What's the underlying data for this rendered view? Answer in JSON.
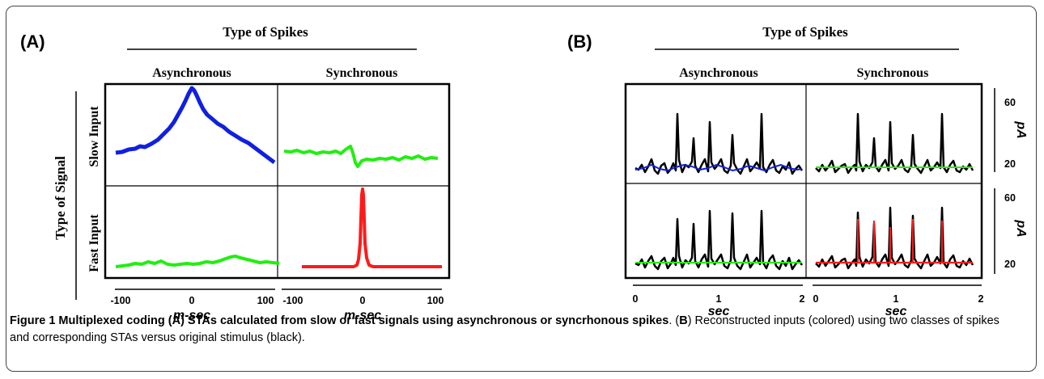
{
  "panels": [
    {
      "label": "(A)",
      "header": "Type of Spikes",
      "columns": [
        "Asynchronous",
        "Synchronous"
      ],
      "row_header": "Type of Signal",
      "rows": [
        "Slow Input",
        "Fast Input"
      ],
      "x_axes": [
        {
          "ticks": [
            "-100",
            "0",
            "100"
          ],
          "label": "m-sec"
        },
        {
          "ticks": [
            "-100",
            "0",
            "100"
          ],
          "label": "m-sec"
        }
      ]
    },
    {
      "label": "(B)",
      "header": "Type of Spikes",
      "columns": [
        "Asynchronous",
        "Synchronous"
      ],
      "y_axes": [
        {
          "ticks": [
            "60",
            "20"
          ],
          "label": "pA"
        },
        {
          "ticks": [
            "60",
            "20"
          ],
          "label": "pA"
        }
      ],
      "x_axes": [
        {
          "ticks": [
            "0",
            "1",
            "2"
          ],
          "label": "sec"
        },
        {
          "ticks": [
            "0",
            "1",
            "2"
          ],
          "label": "sec"
        }
      ]
    }
  ],
  "colors": {
    "blue": "#1020e0",
    "green": "#22ee11",
    "red": "#ff1a1a",
    "black": "#000000"
  },
  "caption": {
    "lead": "Figure 1 Multiplexed coding (A) STAs calculated from slow or fast signals using asynchronous or syncrhonous spikes",
    "part_b_intro": ". (",
    "part_b_letter": "B",
    "rest": ") Reconstructed inputs (colored) using two classes of spikes and corresponding STAs versus original stimulus (black)."
  }
}
